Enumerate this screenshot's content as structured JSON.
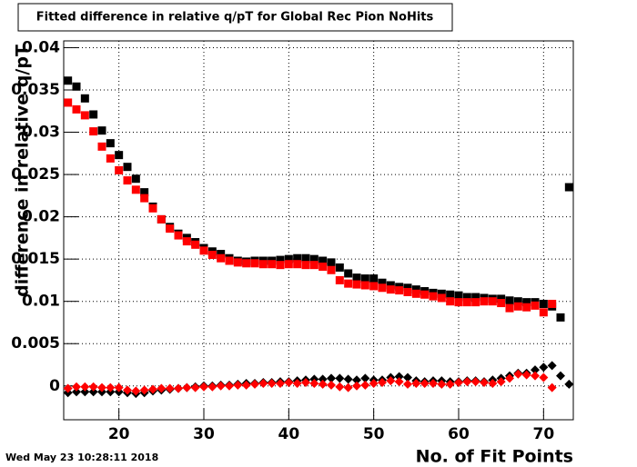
{
  "chart_data": {
    "type": "scatter",
    "title": "Fitted difference in relative q/pT for Global Rec Pion NoHits",
    "x_label": "No. of Fit Points",
    "y_label": "difference in relative q/pT",
    "timestamp": "Wed May 23 10:28:11 2018",
    "xlim": [
      13.5,
      73.5
    ],
    "ylim": [
      -0.004,
      0.0408
    ],
    "xticks": [
      20,
      30,
      40,
      50,
      60,
      70
    ],
    "yticks": [
      0,
      0.005,
      0.01,
      0.015,
      0.02,
      0.025,
      0.03,
      0.035,
      0.04
    ],
    "grid": true,
    "x": [
      14,
      15,
      16,
      17,
      18,
      19,
      20,
      21,
      22,
      23,
      24,
      25,
      26,
      27,
      28,
      29,
      30,
      31,
      32,
      33,
      34,
      35,
      36,
      37,
      38,
      39,
      40,
      41,
      42,
      43,
      44,
      45,
      46,
      47,
      48,
      49,
      50,
      51,
      52,
      53,
      54,
      55,
      56,
      57,
      58,
      59,
      60,
      61,
      62,
      63,
      64,
      65,
      66,
      67,
      68,
      69,
      70,
      71,
      72,
      73
    ],
    "series": [
      {
        "color": "#000000",
        "marker": "square",
        "values": [
          0.0361,
          0.0354,
          0.034,
          0.0321,
          0.0302,
          0.0287,
          0.0273,
          0.0259,
          0.0245,
          0.0229,
          0.0212,
          0.0197,
          0.0188,
          0.018,
          0.0175,
          0.017,
          0.0163,
          0.0159,
          0.0156,
          0.0151,
          0.0148,
          0.0147,
          0.0148,
          0.0148,
          0.0148,
          0.0149,
          0.015,
          0.0151,
          0.0151,
          0.015,
          0.0148,
          0.0146,
          0.014,
          0.0133,
          0.0128,
          0.0127,
          0.0127,
          0.0122,
          0.0119,
          0.0117,
          0.0116,
          0.0114,
          0.0112,
          0.011,
          0.0109,
          0.0108,
          0.0107,
          0.0105,
          0.0105,
          0.0104,
          0.0103,
          0.0103,
          0.0101,
          0.01,
          0.0099,
          0.0099,
          0.0097,
          0.0094,
          0.0081,
          0.0235
        ]
      },
      {
        "color": "#ff0000",
        "marker": "square",
        "values": [
          0.0335,
          0.0327,
          0.032,
          0.0301,
          0.0283,
          0.0269,
          0.0255,
          0.0243,
          0.0232,
          0.0222,
          0.021,
          0.0197,
          0.0186,
          0.0178,
          0.0171,
          0.0167,
          0.016,
          0.0155,
          0.0151,
          0.0148,
          0.0146,
          0.0145,
          0.0145,
          0.0144,
          0.0144,
          0.0143,
          0.0144,
          0.0144,
          0.0143,
          0.0143,
          0.0141,
          0.0137,
          0.0125,
          0.0121,
          0.012,
          0.0119,
          0.0118,
          0.0116,
          0.0114,
          0.0113,
          0.0111,
          0.0109,
          0.0108,
          0.0106,
          0.0104,
          0.01,
          0.0099,
          0.0099,
          0.0099,
          0.01,
          0.01,
          0.0098,
          0.0092,
          0.0094,
          0.0093,
          0.0095,
          0.0087,
          0.0097,
          null,
          null
        ]
      },
      {
        "color": "#000000",
        "marker": "diamond",
        "values": [
          -0.0008,
          -0.0007,
          -0.0007,
          -0.0007,
          -0.0007,
          -0.0007,
          -0.0007,
          -0.0008,
          -0.0009,
          -0.0008,
          -0.0006,
          -0.0005,
          -0.0004,
          -0.0003,
          -0.0002,
          -0.0001,
          0,
          0,
          0.0001,
          0.0001,
          0.0002,
          0.0003,
          0.0003,
          0.0004,
          0.0004,
          0.0005,
          0.0005,
          0.0006,
          0.0007,
          0.0008,
          0.0008,
          0.0009,
          0.0009,
          0.0008,
          0.0007,
          0.0009,
          0.0007,
          0.0007,
          0.001,
          0.0011,
          0.001,
          0.0006,
          0.0005,
          0.0006,
          0.0006,
          0.0005,
          0.0005,
          0.0006,
          0.0006,
          0.0005,
          0.0007,
          0.0009,
          0.0012,
          0.0015,
          0.0015,
          0.0019,
          0.0022,
          0.0024,
          0.0012,
          0.0002
        ]
      },
      {
        "color": "#ff0000",
        "marker": "diamond",
        "values": [
          -0.0003,
          -0.0001,
          -0.0001,
          -0.0001,
          -0.0002,
          -0.0002,
          -0.0002,
          -0.0005,
          -0.0006,
          -0.0005,
          -0.0004,
          -0.0003,
          -0.0003,
          -0.0003,
          -0.0002,
          -0.0002,
          -0.0001,
          -0.0001,
          0,
          0,
          0.0001,
          0.0001,
          0.0002,
          0.0003,
          0.0003,
          0.0003,
          0.0004,
          0.0003,
          0.0004,
          0.0003,
          0.0002,
          0.0001,
          -0.0001,
          -0.0002,
          0,
          0.0001,
          0.0003,
          0.0004,
          0.0006,
          0.0005,
          0.0002,
          0.0003,
          0.0003,
          0.0003,
          0.0002,
          0.0002,
          0.0004,
          0.0005,
          0.0005,
          0.0004,
          0.0003,
          0.0005,
          0.0009,
          0.0014,
          0.0013,
          0.0012,
          0.001,
          -0.0002,
          null,
          null
        ]
      }
    ]
  }
}
